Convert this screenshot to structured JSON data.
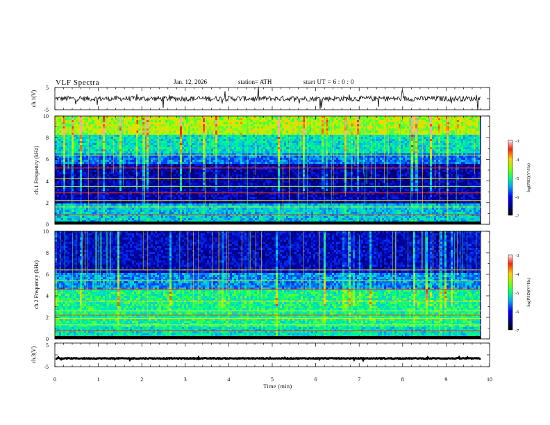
{
  "header": {
    "title": "VLF Spectra",
    "date": "Jan. 12, 2026",
    "station": "station= ATH",
    "start_ut": "start UT =  6 : 0 : 0"
  },
  "chart_data": [
    {
      "type": "line",
      "panel": "ch1-waveform",
      "ylabel": "ch.1(V)",
      "ylim": [
        -5,
        5
      ],
      "yticks": [
        "5",
        "-5"
      ],
      "xlim": [
        0,
        10
      ],
      "data_end_min": 9.8,
      "description_values": {
        "baseline_v": 0,
        "noise_amplitude_v": 1.2
      }
    },
    {
      "type": "heatmap",
      "panel": "ch1-spectrogram",
      "ylabel": "ch.1 Frequency (kHz)",
      "ylim": [
        0,
        10
      ],
      "yticks": [
        "0",
        "2",
        "4",
        "6",
        "8",
        "10"
      ],
      "xlim": [
        0,
        10
      ],
      "data_end_min": 9.8,
      "colorbar": {
        "label": "log(PSD)(V²/Hz)",
        "range": [
          -7,
          -3
        ],
        "ticks": [
          "-3",
          "-4",
          "-5",
          "-6",
          "-7"
        ]
      },
      "lines_khz": [
        0.9,
        1.6,
        2.2,
        2.9,
        3.5,
        4.2,
        5.2,
        6.4
      ]
    },
    {
      "type": "heatmap",
      "panel": "ch2-spectrogram",
      "ylabel": "ch.2 Frequency (kHz)",
      "ylim": [
        0,
        10
      ],
      "yticks": [
        "0",
        "2",
        "4",
        "6",
        "8",
        "10"
      ],
      "xlim": [
        0,
        10
      ],
      "data_end_min": 9.8,
      "colorbar": {
        "label": "log(PSD)(V²/Hz)",
        "range": [
          -7,
          -3
        ],
        "ticks": [
          "-3",
          "-4",
          "-5",
          "-6",
          "-7"
        ]
      },
      "lines_khz": [
        0.8,
        1.3,
        1.9,
        2.2,
        2.6,
        3.5,
        4.6,
        5.4,
        6.4
      ]
    },
    {
      "type": "line",
      "panel": "ch3-waveform",
      "ylabel": "ch.3(V)",
      "ylim": [
        -5,
        5
      ],
      "yticks": [
        "5",
        "-5"
      ],
      "xlim": [
        0,
        10
      ],
      "data_end_min": 9.8,
      "description_values": {
        "baseline_v": -1.5,
        "noise_amplitude_v": 0.15
      }
    }
  ],
  "xaxis": {
    "label": "Time (min)",
    "ticks": [
      "0",
      "1",
      "2",
      "3",
      "4",
      "5",
      "6",
      "7",
      "8",
      "9",
      "10"
    ]
  }
}
